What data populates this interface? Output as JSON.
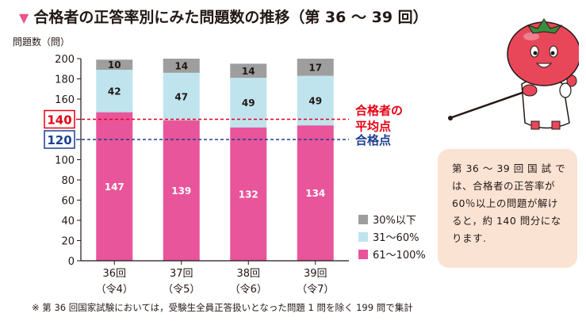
{
  "title": "合格者の正答率別にみた問題数の推移（第 36 ～ 39 回）",
  "footnote": "※ 第 36 回国家試験においては，受験生全員正答扱いとなった問題 1 問を除く 199 問で集計",
  "bubble_text": "第 36 ～ 39 回 国 試 では、合格者の正答率が 60％以上の問題が解けると，約 140 問分になります.",
  "colors": {
    "low": "#9e9e9f",
    "mid": "#bfe4ee",
    "high": "#e8559a",
    "avg_line": "#e60012",
    "pass_line": "#1d3e92"
  },
  "chart_data": {
    "type": "bar",
    "stacked": true,
    "ylabel": "問題数（問）",
    "ylim": [
      0,
      200
    ],
    "yticks": [
      "0",
      "20",
      "40",
      "60",
      "80",
      "100",
      "120",
      "140",
      "160",
      "180",
      "200"
    ],
    "categories": [
      "36回",
      "37回",
      "38回",
      "39回"
    ],
    "category_sublabels": [
      "（令4）",
      "（令5）",
      "（令6）",
      "（令7）"
    ],
    "series": [
      {
        "name": "61～100%",
        "color": "#e8559a",
        "values": [
          147,
          139,
          132,
          134
        ]
      },
      {
        "name": "31～60%",
        "color": "#bfe4ee",
        "values": [
          42,
          47,
          49,
          49
        ]
      },
      {
        "name": "30%以下",
        "color": "#9e9e9f",
        "values": [
          10,
          14,
          14,
          17
        ]
      }
    ],
    "legend_order": [
      "30%以下",
      "31～60%",
      "61～100%"
    ],
    "reference_lines": [
      {
        "value": 140,
        "label": "140",
        "text": "合格者の平均点",
        "color": "#e60012"
      },
      {
        "value": 120,
        "label": "120",
        "text": "合格点",
        "color": "#1d3e92"
      }
    ]
  }
}
